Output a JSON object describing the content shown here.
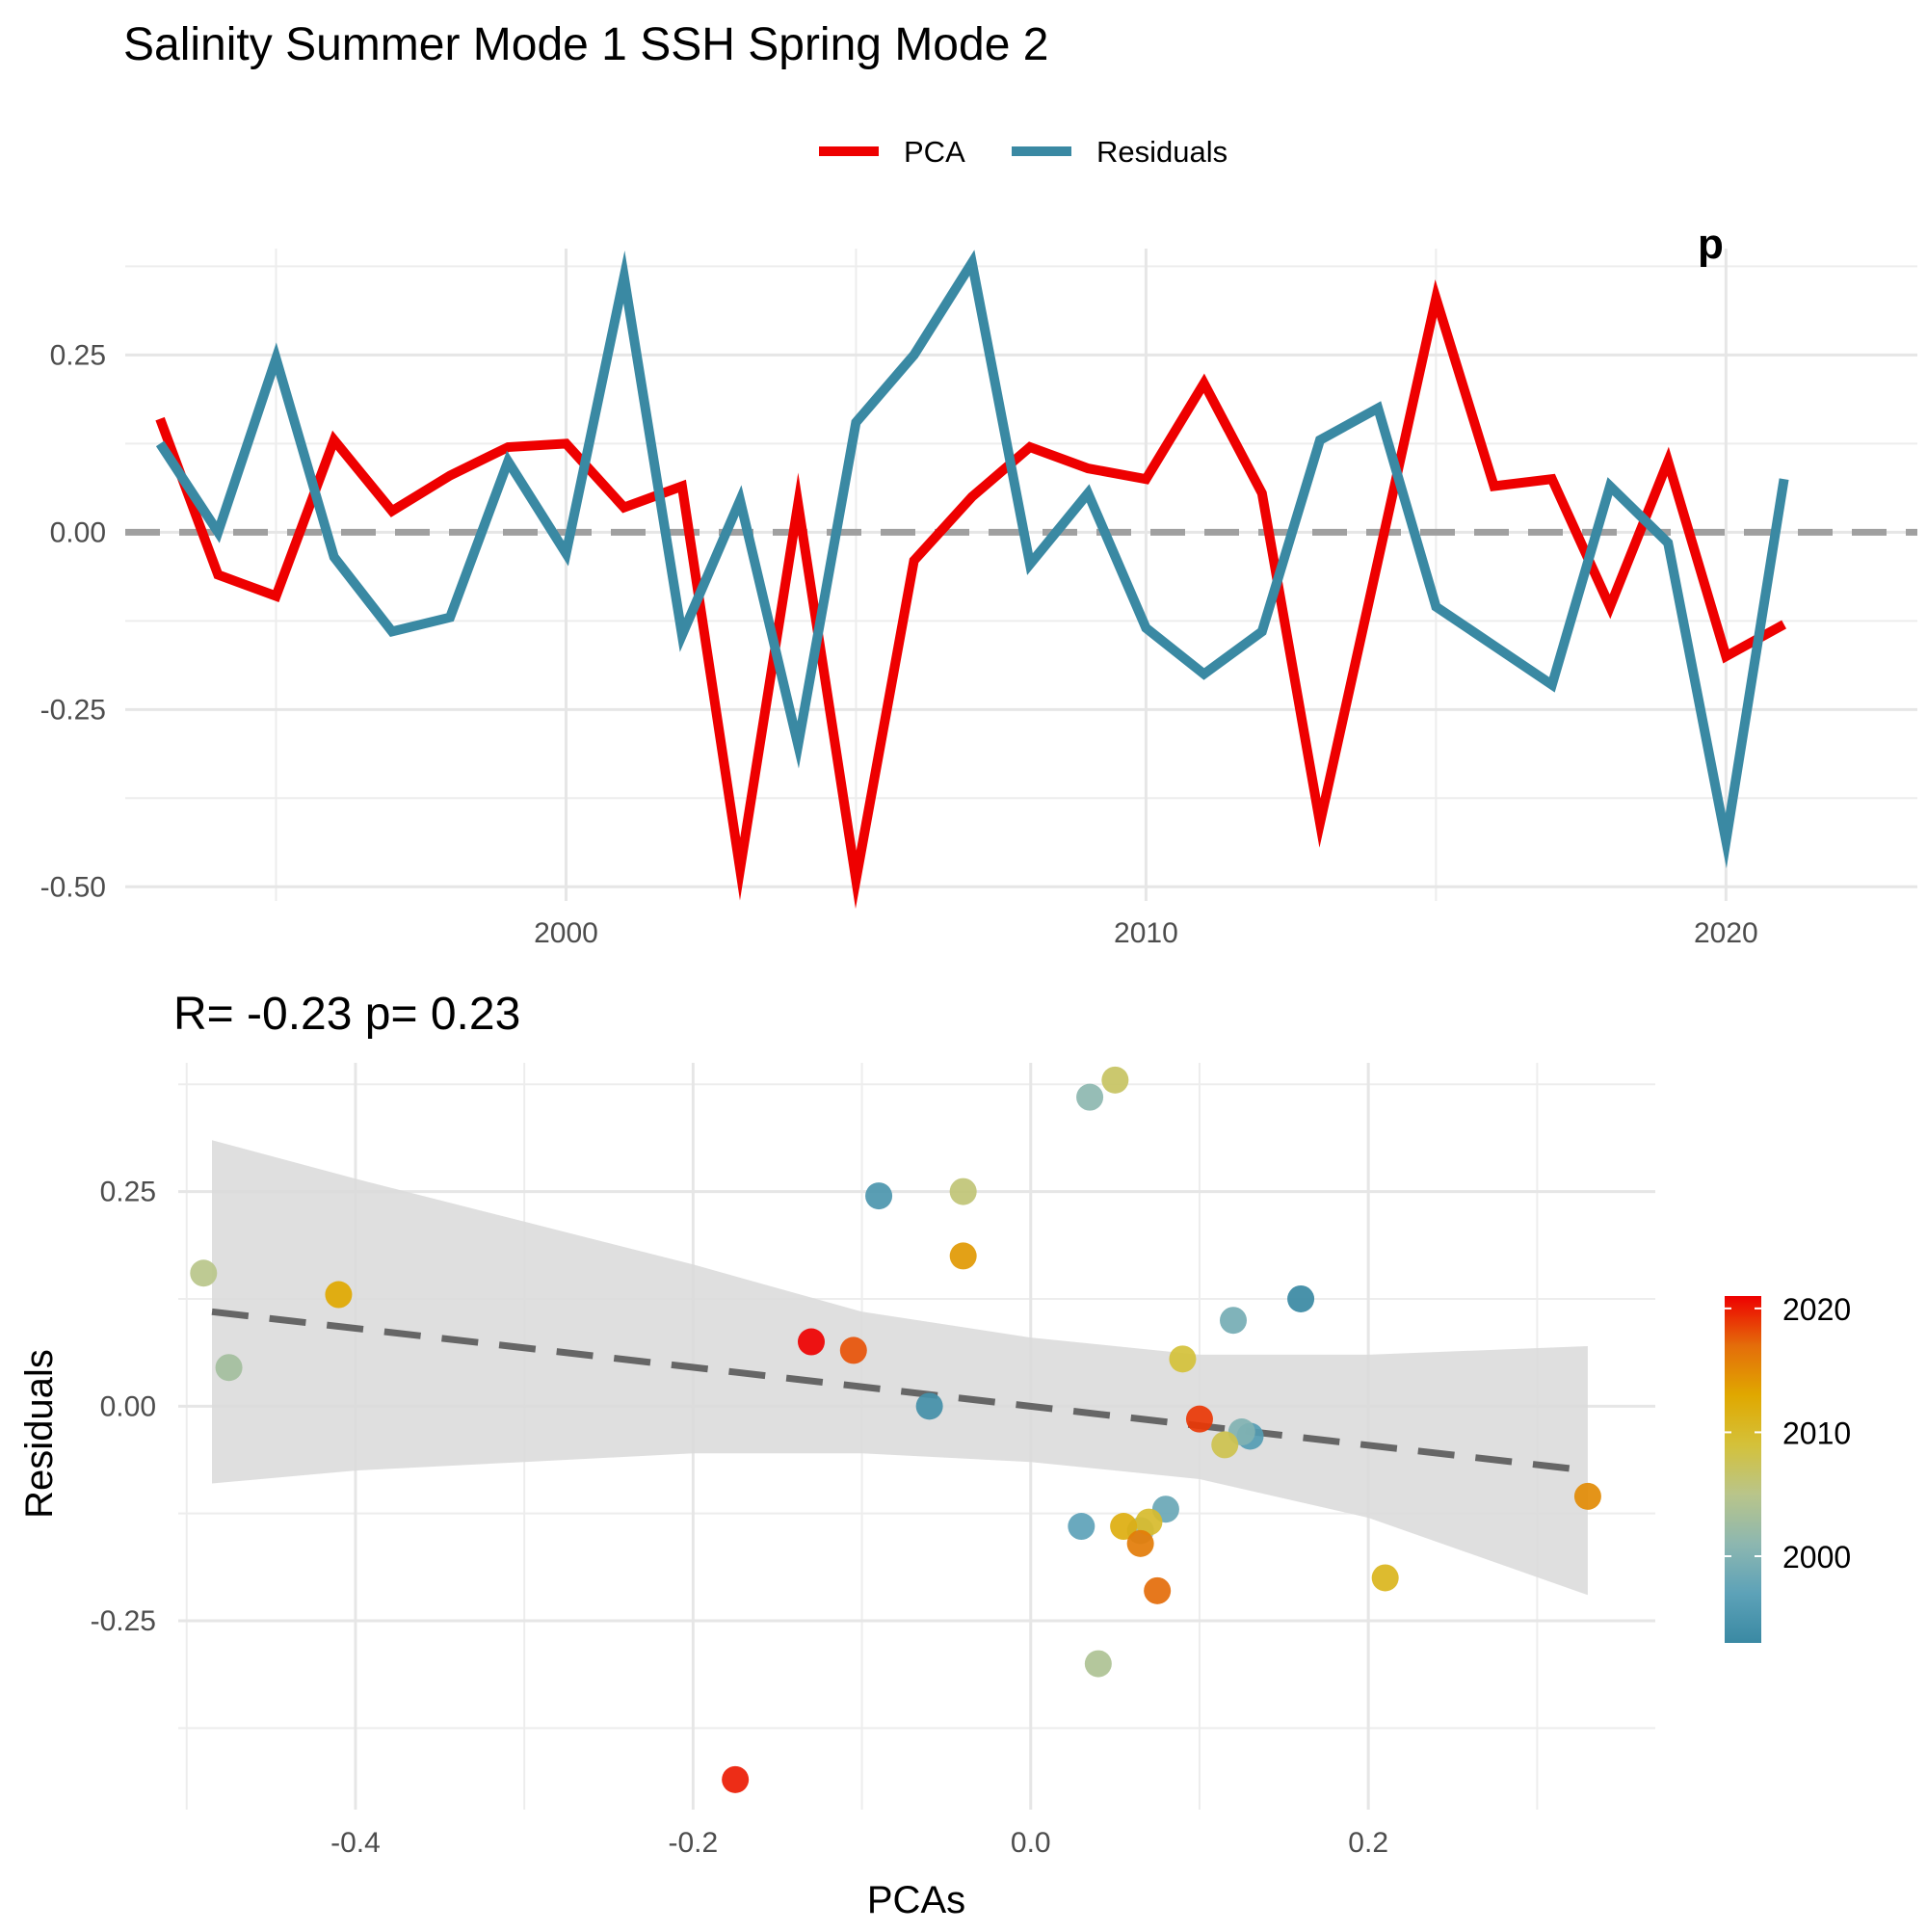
{
  "title": "Salinity Summer Mode 1 SSH Spring Mode 2",
  "legend": {
    "position": "top",
    "items": [
      {
        "label": "PCA",
        "color": "#EE0000"
      },
      {
        "label": "Residuals",
        "color": "#3A89A3"
      }
    ]
  },
  "chart_data": [
    {
      "type": "line",
      "xlabel": "",
      "ylabel": "",
      "xlim": [
        1992.4,
        2023.3
      ],
      "ylim": [
        -0.52,
        0.4
      ],
      "x_ticks": [
        "2000",
        "2010",
        "2020"
      ],
      "y_ticks": [
        "0.25",
        "0.00",
        "-0.25",
        "-0.50"
      ],
      "grid": true,
      "reference_line": {
        "y": 0,
        "style": "dashed",
        "color": "#A0A0A0"
      },
      "x": [
        1993,
        1994,
        1995,
        1996,
        1997,
        1998,
        1999,
        2000,
        2001,
        2002,
        2003,
        2004,
        2005,
        2006,
        2007,
        2008,
        2009,
        2010,
        2011,
        2012,
        2013,
        2014,
        2015,
        2016,
        2017,
        2018,
        2019,
        2020,
        2021
      ],
      "series": [
        {
          "name": "PCA",
          "color": "#EE0000",
          "values": [
            0.16,
            -0.06,
            -0.09,
            0.13,
            0.03,
            0.08,
            0.12,
            0.125,
            0.035,
            0.065,
            -0.475,
            0.04,
            -0.49,
            -0.04,
            0.05,
            0.12,
            0.09,
            0.075,
            0.21,
            0.055,
            -0.41,
            -0.04,
            0.33,
            0.065,
            0.075,
            -0.105,
            0.1,
            -0.175,
            -0.13
          ]
        },
        {
          "name": "Residuals",
          "color": "#3A89A3",
          "values": [
            0.125,
            0.0,
            0.245,
            -0.035,
            -0.14,
            -0.12,
            0.1,
            -0.03,
            0.36,
            -0.145,
            0.045,
            -0.3,
            0.155,
            0.25,
            0.38,
            -0.045,
            0.055,
            -0.135,
            -0.2,
            -0.14,
            0.13,
            0.175,
            -0.105,
            -0.16,
            -0.215,
            0.065,
            -0.015,
            -0.435,
            0.075
          ]
        }
      ],
      "annotation_partial": "p"
    },
    {
      "type": "scatter",
      "subtitle": "R= -0.23  p= 0.23",
      "xlabel": "PCAs",
      "ylabel": "Residuals",
      "xlim": [
        -0.505,
        0.37
      ],
      "ylim": [
        -0.47,
        0.4
      ],
      "x_ticks": [
        "-0.4",
        "-0.2",
        "0.0",
        "0.2"
      ],
      "y_ticks": [
        "0.25",
        "0.00",
        "-0.25"
      ],
      "grid": true,
      "colorbar": {
        "position": "right",
        "labels": [
          "2020",
          "2010",
          "2000"
        ],
        "colors": [
          "#EE0000",
          "#E46D0A",
          "#E0A800",
          "#D4C13A",
          "#B9C58A",
          "#8DB7B0",
          "#5DA2B8",
          "#3A89A3"
        ]
      },
      "fit_line": {
        "style": "dashed",
        "color": "#666666",
        "x": [
          -0.485,
          0.33
        ],
        "y": [
          0.11,
          -0.075
        ]
      },
      "confidence_band": {
        "color": "#D9D9D9",
        "x": [
          -0.485,
          -0.4,
          -0.3,
          -0.2,
          -0.1,
          0.0,
          0.1,
          0.2,
          0.33
        ],
        "upper": [
          0.31,
          0.265,
          0.215,
          0.165,
          0.11,
          0.08,
          0.06,
          0.06,
          0.07
        ],
        "lower": [
          -0.09,
          -0.075,
          -0.065,
          -0.055,
          -0.055,
          -0.065,
          -0.085,
          -0.13,
          -0.22
        ]
      },
      "points": [
        {
          "x": 0.16,
          "y": 0.125,
          "year": 1993
        },
        {
          "x": -0.06,
          "y": 0.0,
          "year": 1994
        },
        {
          "x": -0.09,
          "y": 0.245,
          "year": 1995
        },
        {
          "x": 0.13,
          "y": -0.035,
          "year": 1996
        },
        {
          "x": 0.03,
          "y": -0.14,
          "year": 1997
        },
        {
          "x": 0.08,
          "y": -0.12,
          "year": 1998
        },
        {
          "x": 0.12,
          "y": 0.1,
          "year": 1999
        },
        {
          "x": 0.125,
          "y": -0.03,
          "year": 2000
        },
        {
          "x": 0.035,
          "y": 0.36,
          "year": 2001
        },
        {
          "x": 0.065,
          "y": -0.145,
          "year": 2002
        },
        {
          "x": -0.475,
          "y": 0.045,
          "year": 2003
        },
        {
          "x": 0.04,
          "y": -0.3,
          "year": 2004
        },
        {
          "x": -0.49,
          "y": 0.155,
          "year": 2005
        },
        {
          "x": -0.04,
          "y": 0.25,
          "year": 2006
        },
        {
          "x": 0.05,
          "y": 0.38,
          "year": 2007
        },
        {
          "x": 0.115,
          "y": -0.045,
          "year": 2008
        },
        {
          "x": 0.09,
          "y": 0.055,
          "year": 2009
        },
        {
          "x": 0.07,
          "y": -0.135,
          "year": 2010
        },
        {
          "x": 0.21,
          "y": -0.2,
          "year": 2011
        },
        {
          "x": 0.055,
          "y": -0.14,
          "year": 2012
        },
        {
          "x": -0.41,
          "y": 0.13,
          "year": 2013
        },
        {
          "x": -0.04,
          "y": 0.175,
          "year": 2014
        },
        {
          "x": 0.33,
          "y": -0.105,
          "year": 2015
        },
        {
          "x": 0.065,
          "y": -0.16,
          "year": 2016
        },
        {
          "x": 0.075,
          "y": -0.215,
          "year": 2017
        },
        {
          "x": -0.105,
          "y": 0.065,
          "year": 2018
        },
        {
          "x": 0.1,
          "y": -0.015,
          "year": 2019
        },
        {
          "x": -0.175,
          "y": -0.435,
          "year": 2020
        },
        {
          "x": -0.13,
          "y": 0.075,
          "year": 2021
        }
      ]
    }
  ]
}
